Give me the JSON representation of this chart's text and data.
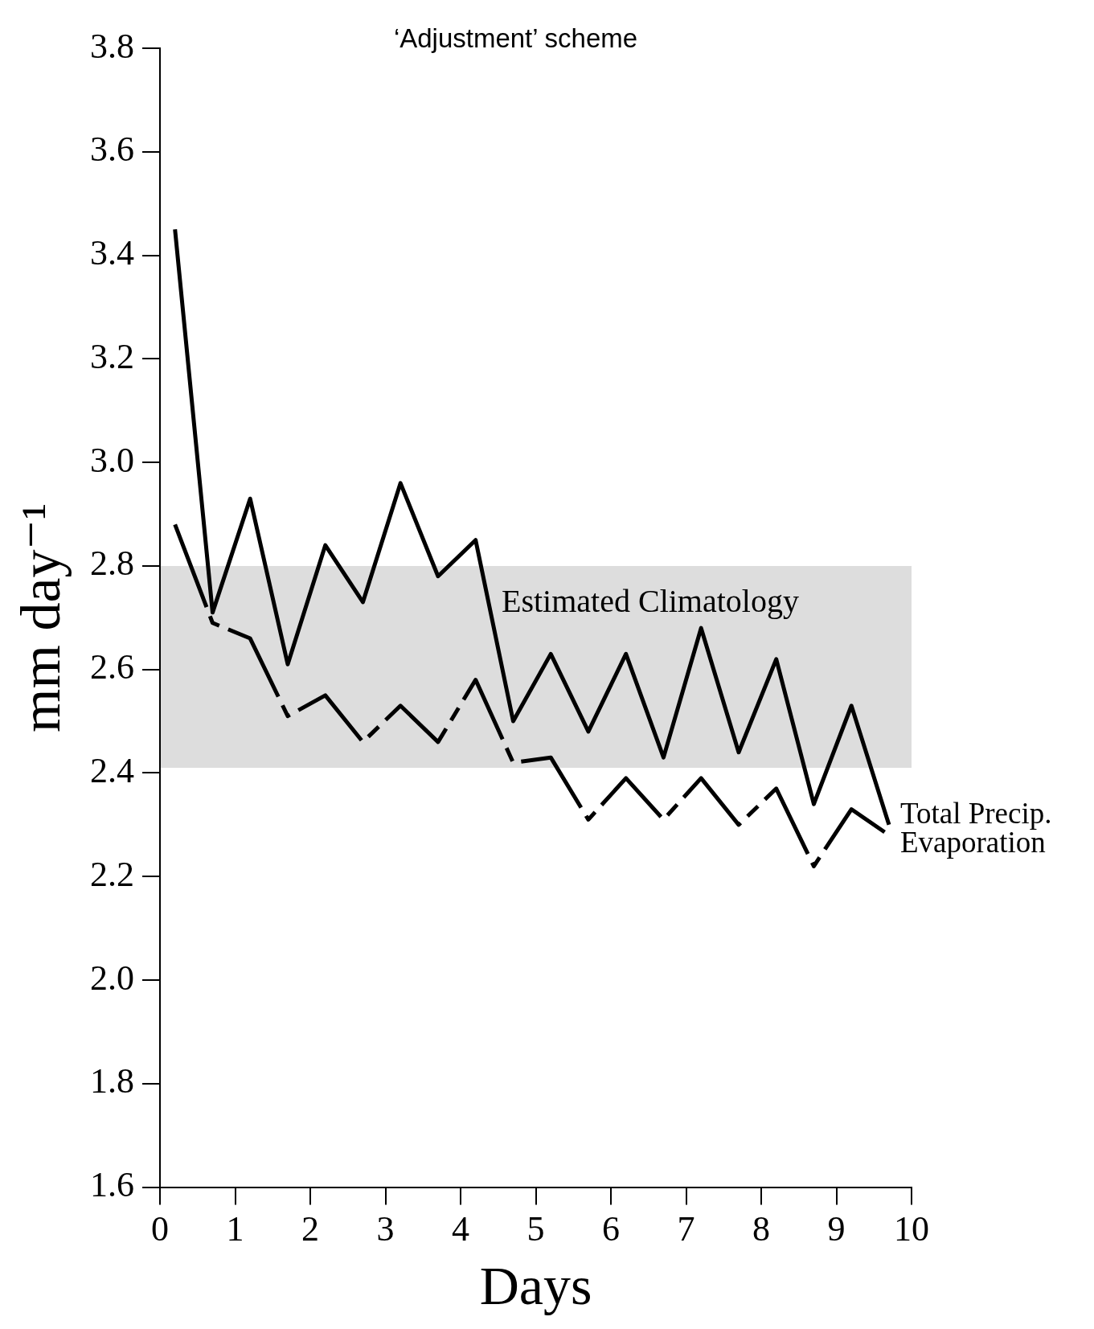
{
  "chart_data": {
    "type": "line",
    "title": "‘Adjustment’ scheme",
    "xlabel": "Days",
    "ylabel": "mm day⁻¹",
    "x": [
      0.2,
      0.7,
      1.2,
      1.7,
      2.2,
      2.7,
      3.2,
      3.7,
      4.2,
      4.7,
      5.2,
      5.7,
      6.2,
      6.7,
      7.2,
      7.7,
      8.2,
      8.7,
      9.2,
      9.7
    ],
    "series": [
      {
        "name": "Total Precip.",
        "color": "#000000",
        "line_style": "solid",
        "values": [
          3.45,
          2.71,
          2.93,
          2.61,
          2.84,
          2.73,
          2.96,
          2.78,
          2.85,
          2.5,
          2.63,
          2.48,
          2.63,
          2.43,
          2.68,
          2.44,
          2.62,
          2.34,
          2.53,
          2.3
        ]
      },
      {
        "name": "Evaporation",
        "color": "#000000",
        "line_style": "dashed",
        "values": [
          2.88,
          2.69,
          2.66,
          2.51,
          2.55,
          2.46,
          2.53,
          2.46,
          2.58,
          2.42,
          2.43,
          2.31,
          2.39,
          2.31,
          2.39,
          2.3,
          2.37,
          2.22,
          2.33,
          2.28
        ]
      }
    ],
    "xlim": [
      0,
      10
    ],
    "xticks": [
      0,
      1,
      2,
      3,
      4,
      5,
      6,
      7,
      8,
      9,
      10
    ],
    "ylim": [
      1.6,
      3.8
    ],
    "yticks": [
      1.6,
      1.8,
      {
        "value": 2.0,
        "label": "2.0"
      },
      2.2,
      2.4,
      2.6,
      2.8,
      {
        "value": 3.0,
        "label": "3.0"
      },
      3.2,
      3.4,
      3.6,
      3.8
    ],
    "bands": [
      {
        "axis": "y",
        "from": 2.41,
        "to": 2.8,
        "label": "Estimated Climatology",
        "color": "#dddddd"
      }
    ],
    "marker": "none"
  }
}
